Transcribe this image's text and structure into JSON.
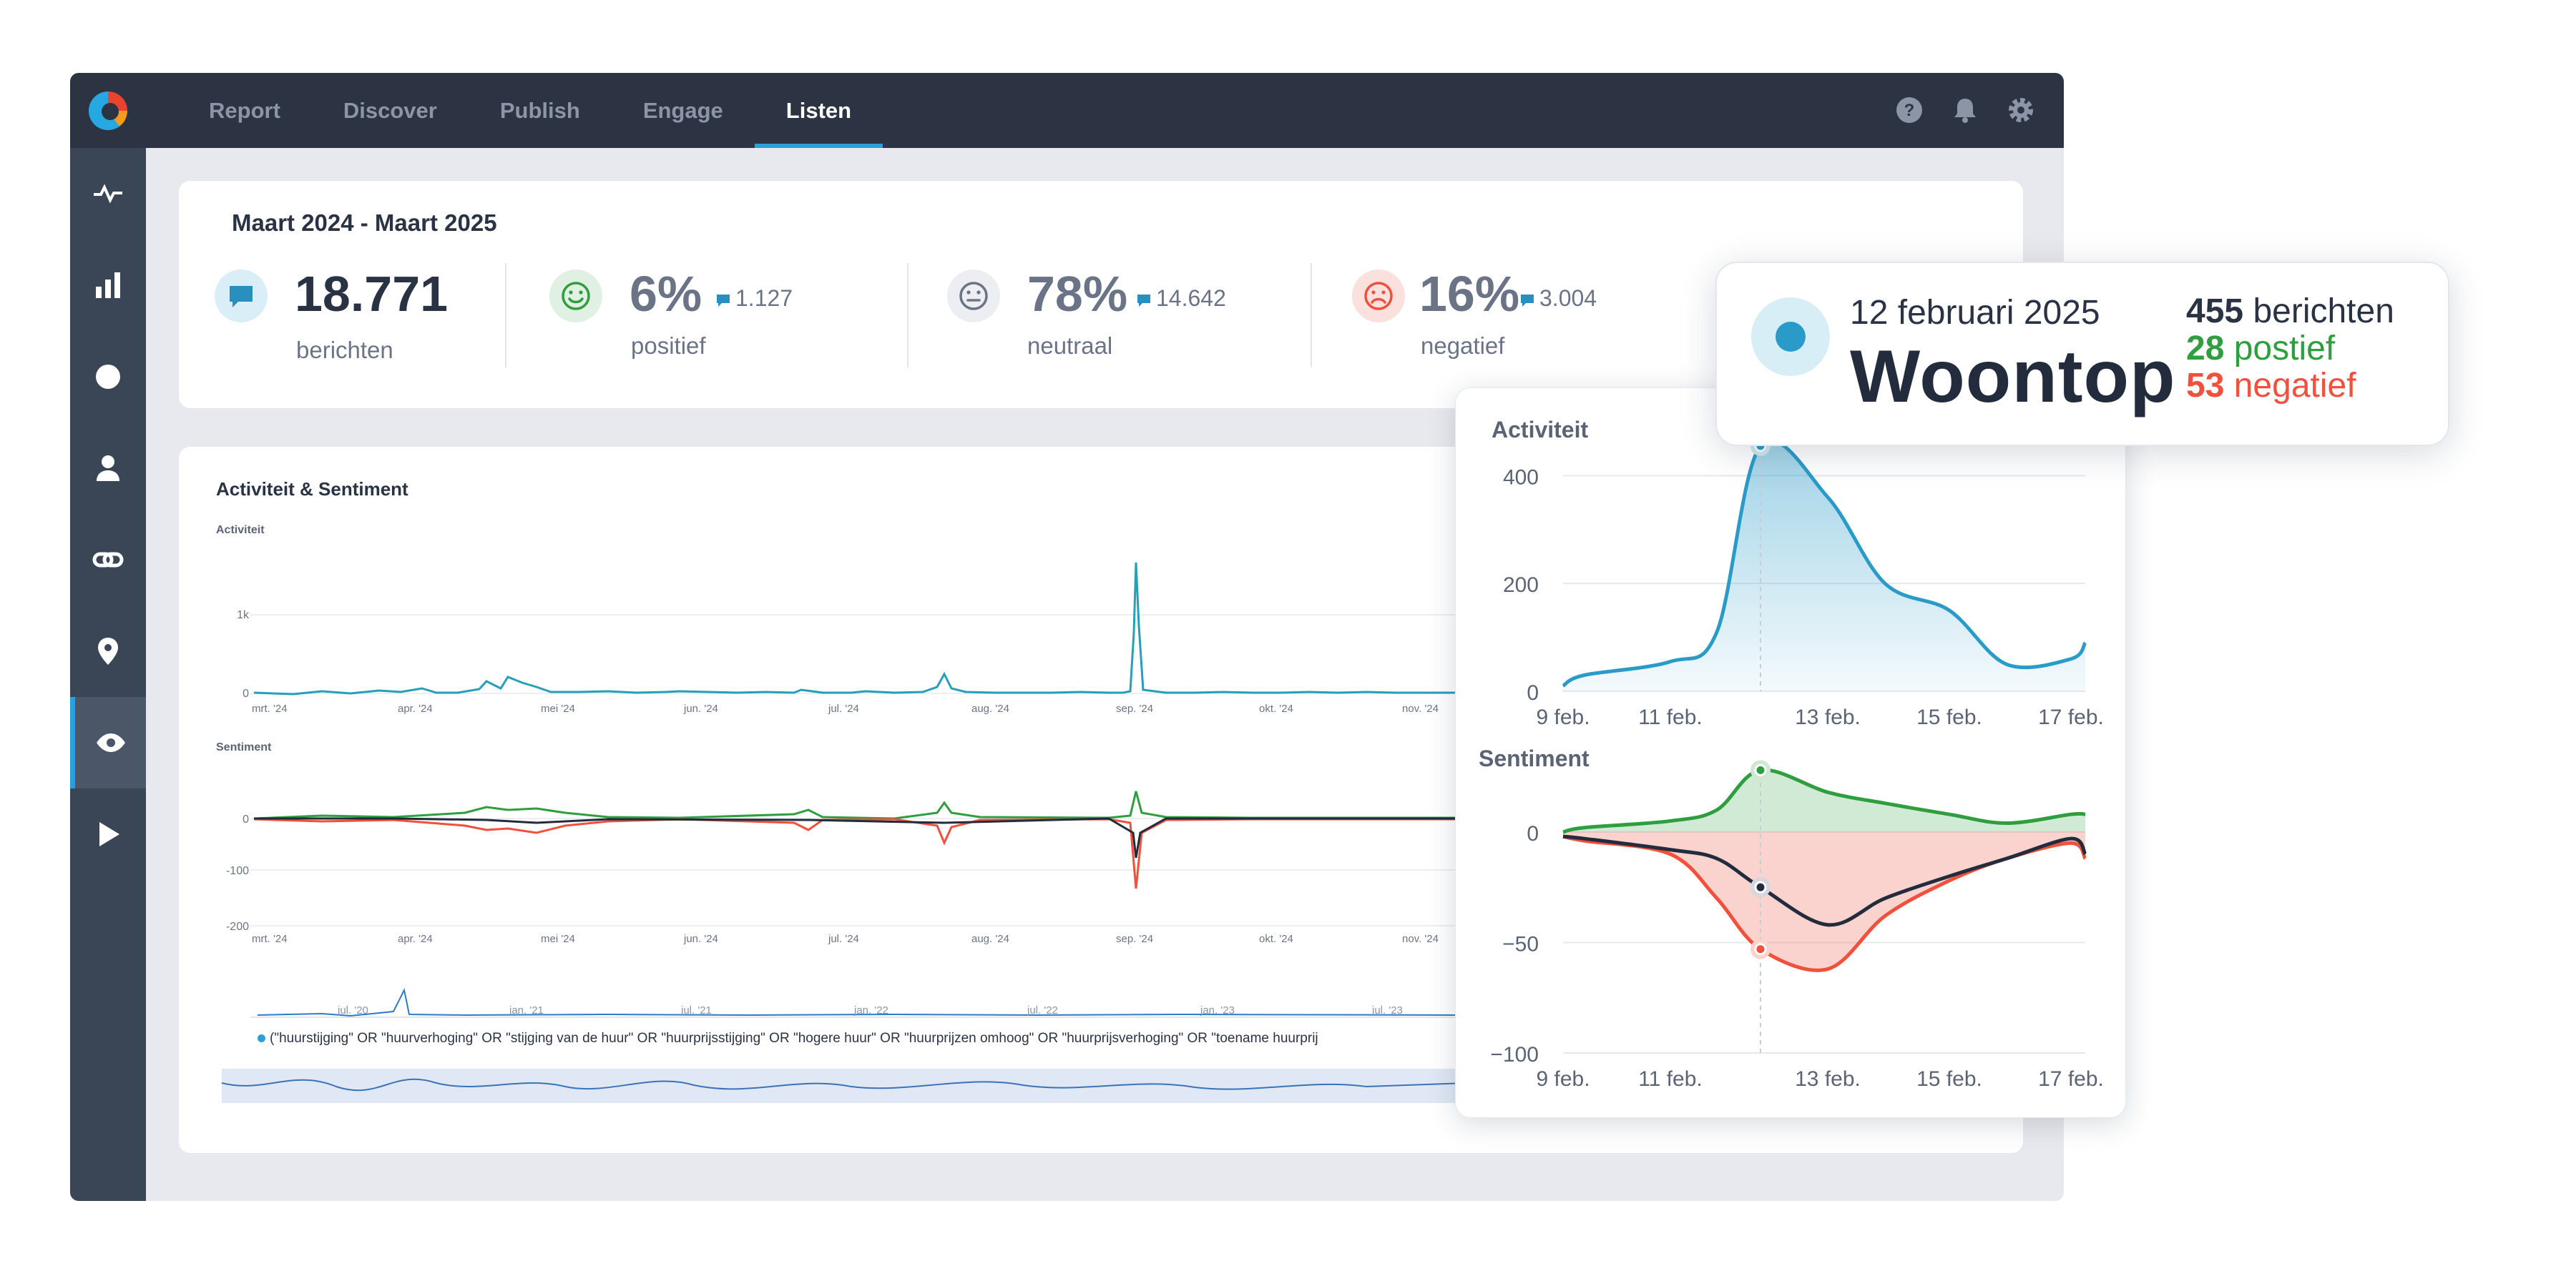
{
  "nav": {
    "items": [
      "Report",
      "Discover",
      "Publish",
      "Engage",
      "Listen"
    ],
    "active": "Listen"
  },
  "summary": {
    "period": "Maart 2024 - Maart 2025",
    "total_value": "18.771",
    "total_label": "berichten",
    "positive_pct": "6%",
    "positive_count": "1.127",
    "positive_label": "positief",
    "neutral_pct": "78%",
    "neutral_count": "14.642",
    "neutral_label": "neutraal",
    "negative_pct": "16%",
    "negative_count": "3.004",
    "negative_label": "negatief"
  },
  "main_chart": {
    "title": "Activiteit & Sentiment",
    "activity_label": "Activiteit",
    "sentiment_label": "Sentiment",
    "activity_ticks": [
      "1k",
      "0"
    ],
    "sentiment_ticks": [
      "0",
      "-100",
      "-200"
    ],
    "months": [
      "mrt. '24",
      "apr. '24",
      "mei '24",
      "jun. '24",
      "jul. '24",
      "aug. '24",
      "sep. '24",
      "okt. '24",
      "nov. '24"
    ],
    "navigator_years": [
      "jul. '20",
      "jan. '21",
      "jul. '21",
      "jan. '22",
      "jul. '22",
      "jan. '23",
      "jul. '23"
    ],
    "query": "(\"huurstijging\" OR \"huurverhoging\" OR \"stijging van de huur\" OR \"huurprijsstijging\" OR \"hogere huur\" OR \"huurprijzen omhoog\" OR \"huurprijsverhoging\" OR \"toename huurprij"
  },
  "popup": {
    "activity_title": "Activiteit",
    "sentiment_title": "Sentiment"
  },
  "tooltip": {
    "date": "12 februari 2025",
    "name": "Woontop",
    "messages_count": "455",
    "messages_label": "berichten",
    "positive_count": "28",
    "positive_label": "postief",
    "negative_count": "53",
    "negative_label": "negatief"
  },
  "colors": {
    "accent": "#2aa0d8",
    "positive": "#2e9e3e",
    "negative": "#f0503c",
    "dark": "#2c3444"
  },
  "chart_data": [
    {
      "type": "area",
      "title": "Activiteit",
      "x": [
        "9 feb.",
        "10 feb.",
        "11 feb.",
        "11.5 feb.",
        "12 feb.",
        "13 feb.",
        "14 feb.",
        "15 feb.",
        "16 feb.",
        "17 feb.",
        "17.5 feb."
      ],
      "x_ticks": [
        "9 feb.",
        "11 feb.",
        "13 feb.",
        "15 feb.",
        "17 feb."
      ],
      "series": [
        {
          "values": [
            10,
            30,
            55,
            110,
            455,
            360,
            200,
            150,
            50,
            60,
            90
          ]
        }
      ],
      "yticks": [
        0,
        200,
        400
      ],
      "ylim": [
        0,
        480
      ]
    },
    {
      "type": "line",
      "title": "Sentiment",
      "x": [
        "9 feb.",
        "10 feb.",
        "11 feb.",
        "11.5 feb.",
        "12 feb.",
        "13 feb.",
        "14 feb.",
        "15 feb.",
        "16 feb.",
        "17 feb.",
        "17.5 feb."
      ],
      "x_ticks": [
        "9 feb.",
        "11 feb.",
        "13 feb.",
        "15 feb.",
        "17 feb."
      ],
      "series": [
        {
          "values": [
            0,
            2,
            5,
            10,
            28,
            18,
            13,
            8,
            4,
            8,
            8
          ]
        },
        {
          "values": [
            -2,
            -3,
            -8,
            -12,
            -25,
            -42,
            -30,
            -20,
            -12,
            -3,
            -10
          ]
        },
        {
          "values": [
            -2,
            -4,
            -10,
            -30,
            -53,
            -62,
            -38,
            -22,
            -12,
            -5,
            -12
          ]
        }
      ],
      "yticks": [
        0,
        -50,
        -100
      ],
      "ylim": [
        -100,
        10
      ]
    }
  ]
}
